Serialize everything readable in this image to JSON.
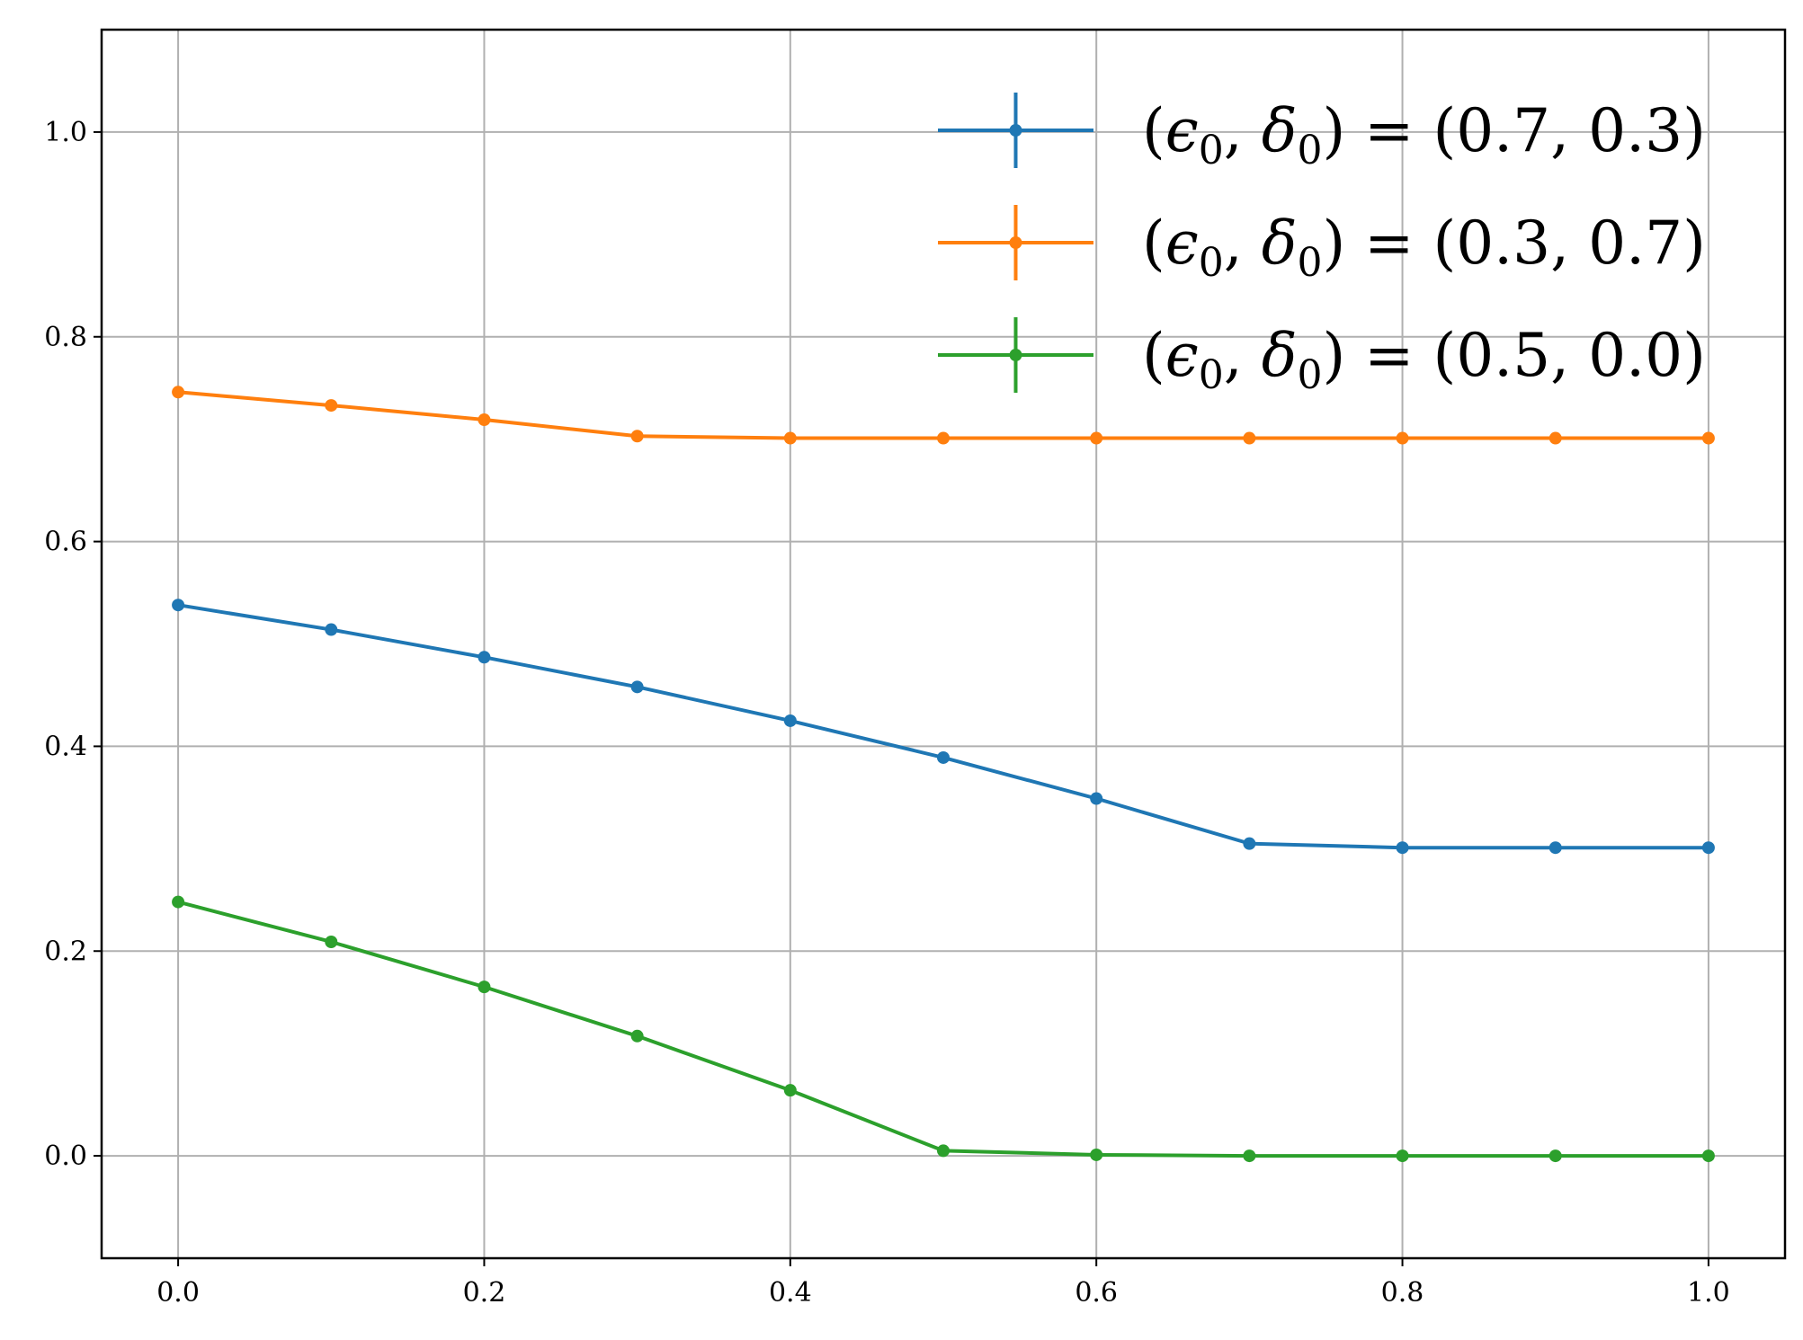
{
  "chart_data": {
    "type": "line",
    "title": "",
    "xlabel": "",
    "ylabel": "",
    "xlim": [
      -0.05,
      1.05
    ],
    "ylim": [
      -0.1,
      1.1
    ],
    "grid": true,
    "legend_position": "top-right",
    "x": [
      0.0,
      0.1,
      0.2,
      0.3,
      0.4,
      0.5,
      0.6,
      0.7,
      0.8,
      0.9,
      1.0
    ],
    "xticks": [
      "0.0",
      "0.2",
      "0.4",
      "0.6",
      "0.8",
      "1.0"
    ],
    "yticks": [
      "0.0",
      "0.2",
      "0.4",
      "0.6",
      "0.8",
      "1.0"
    ],
    "series": [
      {
        "name": "(ϵ0, δ0) = (0.7, 0.3)",
        "legend": {
          "eps": "0.7",
          "delta": "0.3"
        },
        "color": "#1f77b4",
        "values": [
          0.538,
          0.514,
          0.487,
          0.458,
          0.425,
          0.389,
          0.349,
          0.305,
          0.301,
          0.301,
          0.301
        ]
      },
      {
        "name": "(ϵ0, δ0) = (0.3, 0.7)",
        "legend": {
          "eps": "0.3",
          "delta": "0.7"
        },
        "color": "#ff7f0e",
        "values": [
          0.746,
          0.733,
          0.719,
          0.703,
          0.701,
          0.701,
          0.701,
          0.701,
          0.701,
          0.701,
          0.701
        ]
      },
      {
        "name": "(ϵ0, δ0) = (0.5, 0.0)",
        "legend": {
          "eps": "0.5",
          "delta": "0.0"
        },
        "color": "#2ca02c",
        "values": [
          0.248,
          0.209,
          0.165,
          0.117,
          0.064,
          0.005,
          0.001,
          0.0,
          0.0,
          0.0,
          0.0
        ]
      }
    ]
  }
}
